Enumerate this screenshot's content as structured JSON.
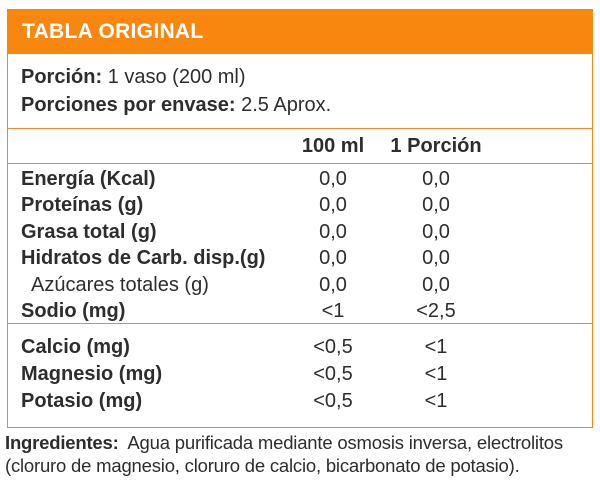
{
  "header": {
    "title": "TABLA ORIGINAL"
  },
  "serving": {
    "portion_label": "Porción:",
    "portion_value": "1 vaso (200 ml)",
    "per_container_label": "Porciones por envase:",
    "per_container_value": "2.5 Aprox."
  },
  "columns": {
    "col1": "100 ml",
    "col2": "1 Porción"
  },
  "nutrients": [
    {
      "label": "Energía (Kcal)",
      "per_100ml": "0,0",
      "per_portion": "0,0",
      "bold": true,
      "indent": false
    },
    {
      "label": "Proteínas (g)",
      "per_100ml": "0,0",
      "per_portion": "0,0",
      "bold": true,
      "indent": false
    },
    {
      "label": "Grasa total (g)",
      "per_100ml": "0,0",
      "per_portion": "0,0",
      "bold": true,
      "indent": false
    },
    {
      "label": "Hidratos de Carb. disp.(g)",
      "per_100ml": "0,0",
      "per_portion": "0,0",
      "bold": true,
      "indent": false
    },
    {
      "label": "Azúcares totales (g)",
      "per_100ml": "0,0",
      "per_portion": "0,0",
      "bold": false,
      "indent": true
    },
    {
      "label": "Sodio (mg)",
      "per_100ml": "<1",
      "per_portion": "<2,5",
      "bold": true,
      "indent": false
    }
  ],
  "minerals": [
    {
      "label": "Calcio (mg)",
      "per_100ml": "<0,5",
      "per_portion": "<1",
      "bold": true,
      "indent": false
    },
    {
      "label": "Magnesio (mg)",
      "per_100ml": "<0,5",
      "per_portion": "<1",
      "bold": true,
      "indent": false
    },
    {
      "label": "Potasio (mg)",
      "per_100ml": "<0,5",
      "per_portion": "<1",
      "bold": true,
      "indent": false
    }
  ],
  "ingredients": {
    "label": "Ingredientes:",
    "line1": "Agua purificada mediante osmosis inversa, electrolitos",
    "line2": "(cloruro de magnesio, cloruro de calcio, bicarbonato de potasio)."
  },
  "colors": {
    "accent_orange": "#F7870F",
    "separator_orange": "#F08A26",
    "text": "#2D2D2D"
  }
}
